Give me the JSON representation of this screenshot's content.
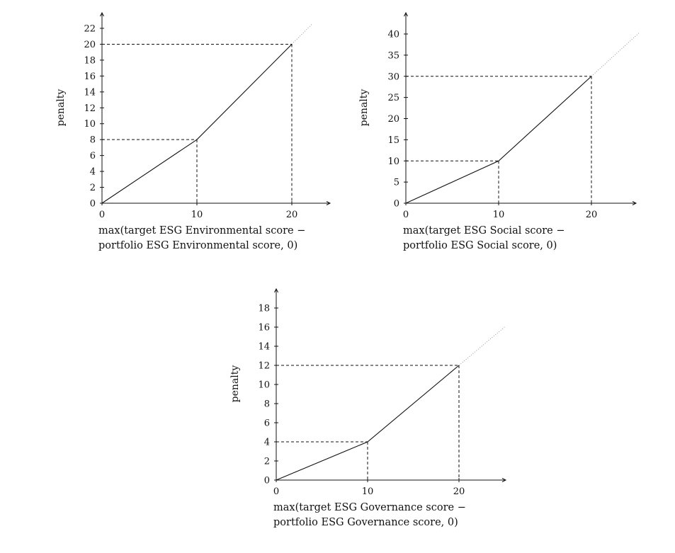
{
  "chart_data": [
    {
      "type": "line",
      "ylabel": "penalty",
      "xlabel_lines": [
        "max(target ESG Environmental score −",
        "portfolio ESG Environmental score, 0)"
      ],
      "xlim": [
        0,
        24.5
      ],
      "ylim": [
        0,
        23.5
      ],
      "x_ticks": [
        0,
        10,
        20
      ],
      "y_ticks": [
        0,
        2,
        4,
        6,
        8,
        10,
        12,
        14,
        16,
        18,
        20,
        22
      ],
      "tick_labels_x": [
        "0",
        "10",
        "20"
      ],
      "tick_labels_y": [
        "0",
        "2",
        "4",
        "6",
        "8",
        "10",
        "12",
        "14",
        "16",
        "18",
        "20",
        "22"
      ],
      "series": [
        {
          "style": "solid",
          "points": [
            [
              0,
              0
            ],
            [
              10,
              8
            ],
            [
              20,
              20
            ]
          ]
        },
        {
          "style": "dotted",
          "points": [
            [
              20,
              20
            ],
            [
              22.1,
              22.5
            ]
          ]
        }
      ],
      "guides": [
        [
          10,
          8
        ],
        [
          20,
          20
        ]
      ]
    },
    {
      "type": "line",
      "ylabel": "penalty",
      "xlabel_lines": [
        "max(target ESG Social score −",
        "portfolio ESG Social score, 0)"
      ],
      "xlim": [
        0,
        25
      ],
      "ylim": [
        0,
        44.5
      ],
      "x_ticks": [
        0,
        10,
        20
      ],
      "y_ticks": [
        0,
        5,
        10,
        15,
        20,
        25,
        30,
        35,
        40
      ],
      "tick_labels_x": [
        "0",
        "10",
        "20"
      ],
      "tick_labels_y": [
        "0",
        "5",
        "10",
        "15",
        "20",
        "25",
        "30",
        "35",
        "40"
      ],
      "series": [
        {
          "style": "solid",
          "points": [
            [
              0,
              0
            ],
            [
              10,
              10
            ],
            [
              20,
              30
            ]
          ]
        },
        {
          "style": "dotted",
          "points": [
            [
              20,
              30
            ],
            [
              25.1,
              40.2
            ]
          ]
        }
      ],
      "guides": [
        [
          10,
          10
        ],
        [
          20,
          30
        ]
      ]
    },
    {
      "type": "line",
      "ylabel": "penalty",
      "xlabel_lines": [
        "max(target ESG Governance score −",
        "portfolio ESG Governance score, 0)"
      ],
      "xlim": [
        0,
        24.5
      ],
      "ylim": [
        0,
        20
      ],
      "x_ticks": [
        0,
        10,
        20
      ],
      "y_ticks": [
        0,
        2,
        4,
        6,
        8,
        10,
        12,
        14,
        16,
        18
      ],
      "tick_labels_x": [
        "0",
        "10",
        "20"
      ],
      "tick_labels_y": [
        "0",
        "2",
        "4",
        "6",
        "8",
        "10",
        "12",
        "14",
        "16",
        "18"
      ],
      "series": [
        {
          "style": "solid",
          "points": [
            [
              0,
              0
            ],
            [
              10,
              4
            ],
            [
              20,
              12
            ]
          ]
        },
        {
          "style": "dotted",
          "points": [
            [
              20,
              12
            ],
            [
              25.1,
              16.1
            ]
          ]
        }
      ],
      "guides": [
        [
          10,
          4
        ],
        [
          20,
          12
        ]
      ]
    }
  ]
}
